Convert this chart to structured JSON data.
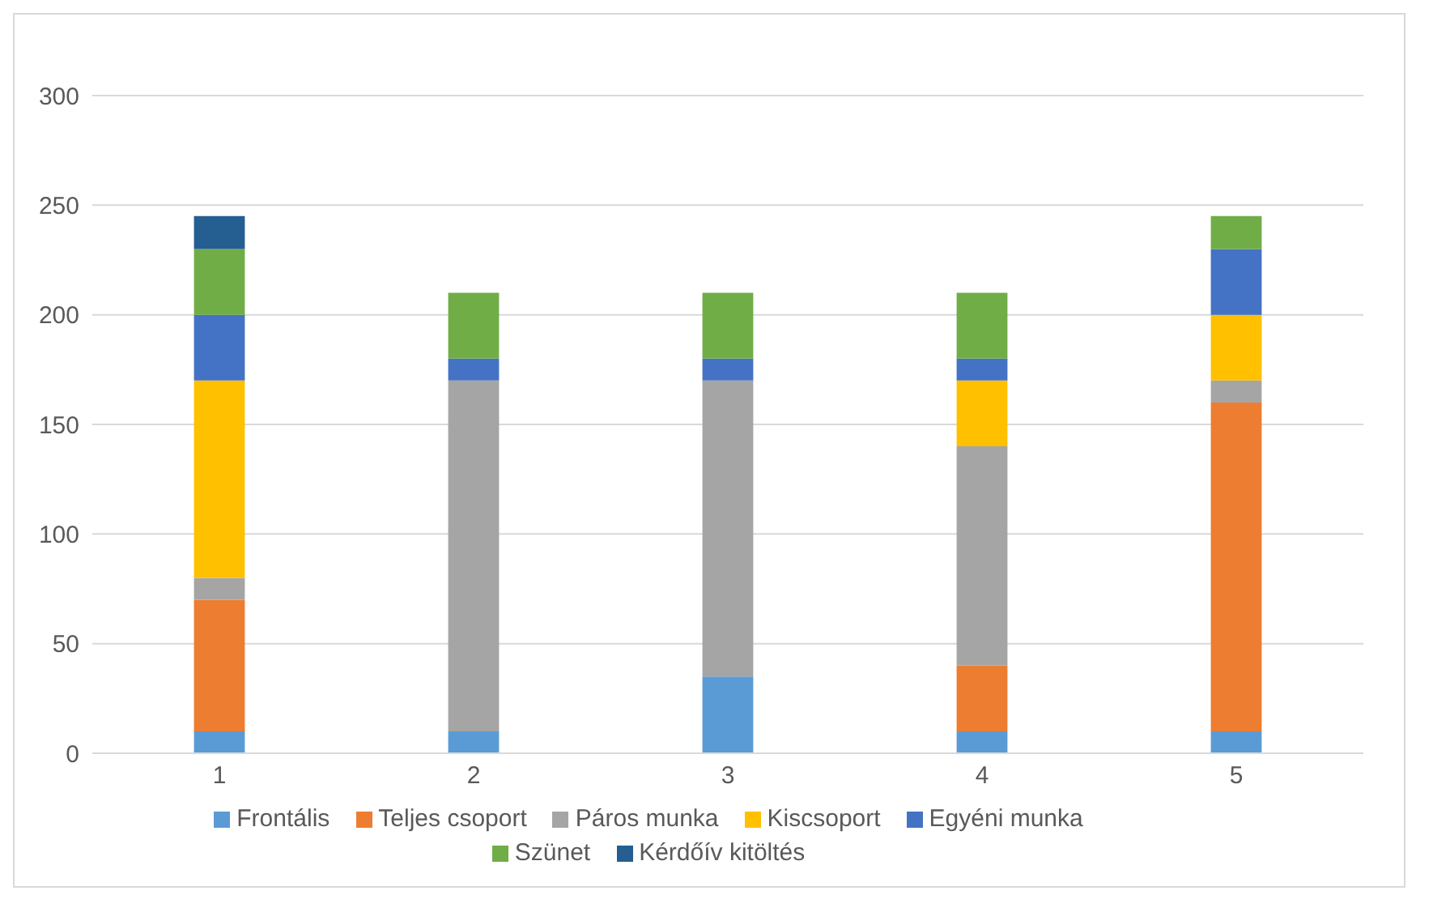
{
  "chart_data": {
    "type": "bar",
    "stacked": true,
    "categories": [
      "1",
      "2",
      "3",
      "4",
      "5"
    ],
    "series": [
      {
        "name": "Frontális",
        "color": "#5b9bd5",
        "values": [
          10,
          10,
          35,
          10,
          10
        ]
      },
      {
        "name": "Teljes csoport",
        "color": "#ed7d31",
        "values": [
          60,
          0,
          0,
          30,
          150
        ]
      },
      {
        "name": "Páros munka",
        "color": "#a5a5a5",
        "values": [
          10,
          160,
          135,
          100,
          10
        ]
      },
      {
        "name": "Kiscsoport",
        "color": "#ffc000",
        "values": [
          90,
          0,
          0,
          30,
          30
        ]
      },
      {
        "name": "Egyéni munka",
        "color": "#4472c4",
        "values": [
          30,
          10,
          10,
          10,
          30
        ]
      },
      {
        "name": "Szünet",
        "color": "#70ad47",
        "values": [
          30,
          30,
          30,
          30,
          15
        ]
      },
      {
        "name": "Kérdőív kitöltés",
        "color": "#255e91",
        "values": [
          15,
          0,
          0,
          0,
          0
        ]
      }
    ],
    "ylim": [
      0,
      300
    ],
    "yticks": [
      0,
      50,
      100,
      150,
      200,
      250,
      300
    ],
    "grid": "y",
    "legend": "bottom"
  }
}
